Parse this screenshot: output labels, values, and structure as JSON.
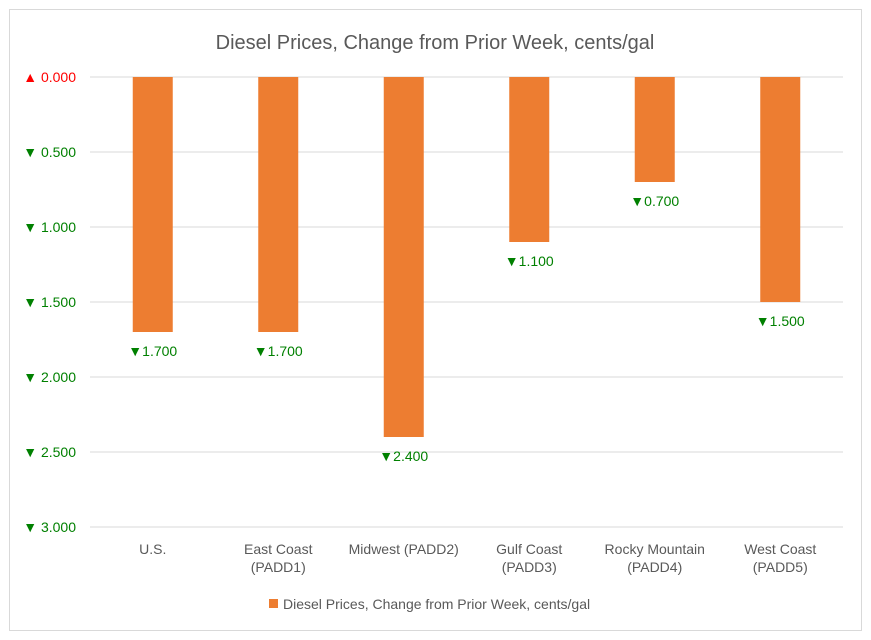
{
  "chart_data": {
    "type": "bar",
    "title": "Diesel Prices, Change from Prior Week, cents/gal",
    "categories": [
      [
        "U.S."
      ],
      [
        "East Coast",
        "(PADD1)"
      ],
      [
        "Midwest (PADD2)"
      ],
      [
        "Gulf Coast",
        "(PADD3)"
      ],
      [
        "Rocky Mountain",
        "(PADD4)"
      ],
      [
        "West Coast",
        "(PADD5)"
      ]
    ],
    "series": [
      {
        "name": "Diesel Prices, Change from Prior Week, cents/gal",
        "values": [
          -1.7,
          -1.7,
          -2.4,
          -1.1,
          -0.7,
          -1.5
        ],
        "color": "#ED7D31"
      }
    ],
    "data_labels": [
      "▼1.700",
      "▼1.700",
      "▼2.400",
      "▼1.100",
      "▼0.700",
      "▼1.500"
    ],
    "y_ticks": [
      0,
      -0.5,
      -1.0,
      -1.5,
      -2.0,
      -2.5,
      -3.0
    ],
    "y_tick_labels": [
      "▲ 0.000",
      "▼ 0.500",
      "▼ 1.000",
      "▼ 1.500",
      "▼ 2.000",
      "▼ 2.500",
      "▼ 3.000"
    ],
    "ylim": [
      -3.0,
      0
    ],
    "grid": true,
    "legend_position": "bottom",
    "colors": {
      "up": "#FF0000",
      "down": "#008000",
      "grid": "#D9D9D9"
    }
  }
}
